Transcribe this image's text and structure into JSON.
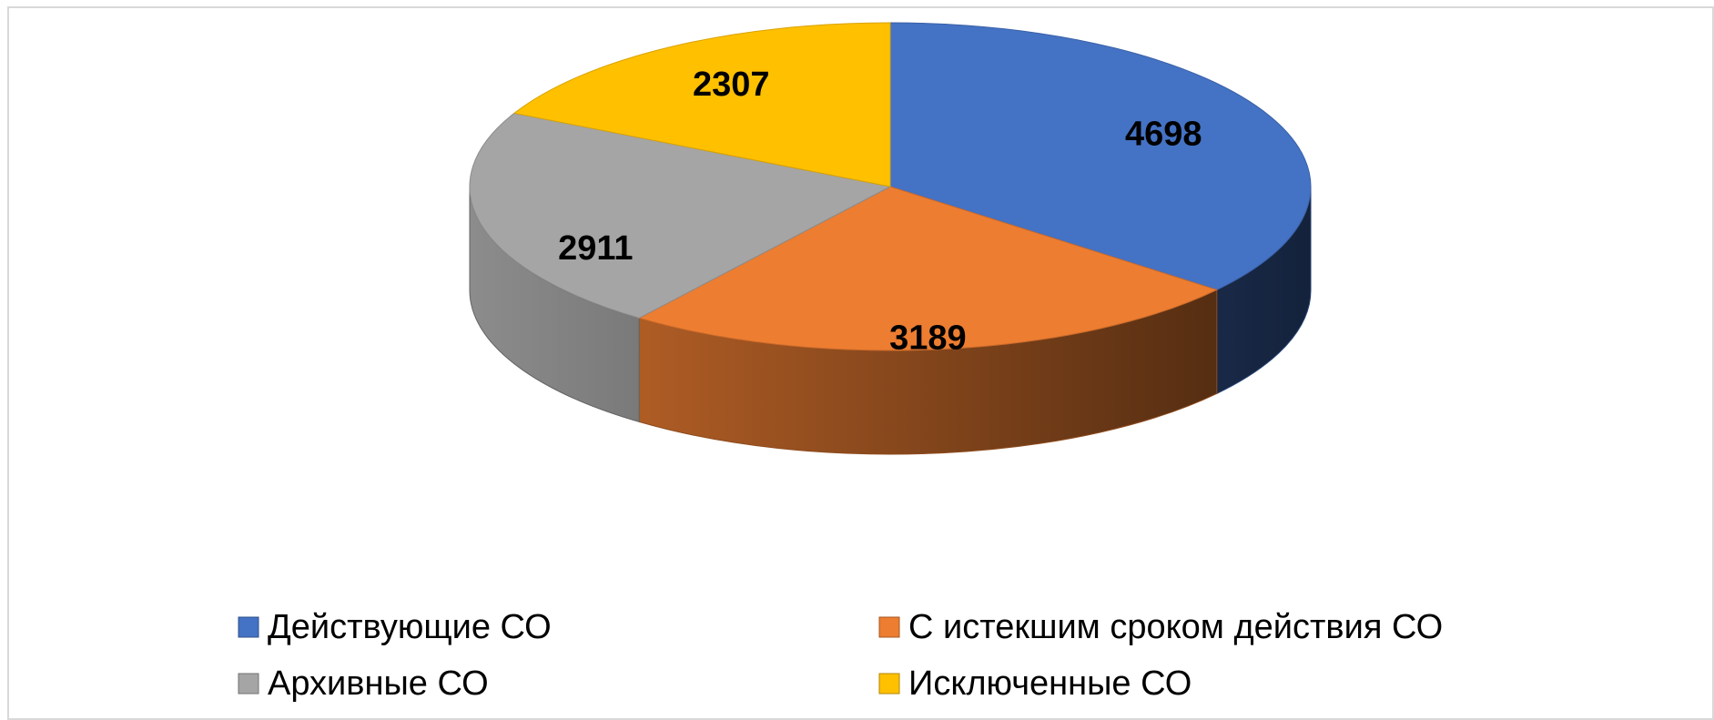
{
  "chart_data": {
    "type": "pie",
    "categories": [
      "Действующие СО",
      "С истекшим сроком действия СО",
      "Архивные СО",
      "Исключенные СО"
    ],
    "values": [
      4698,
      3189,
      2911,
      2307
    ],
    "colors": [
      "#4472c4",
      "#ed7d31",
      "#a5a5a5",
      "#ffc000"
    ],
    "legend": "bottom"
  }
}
